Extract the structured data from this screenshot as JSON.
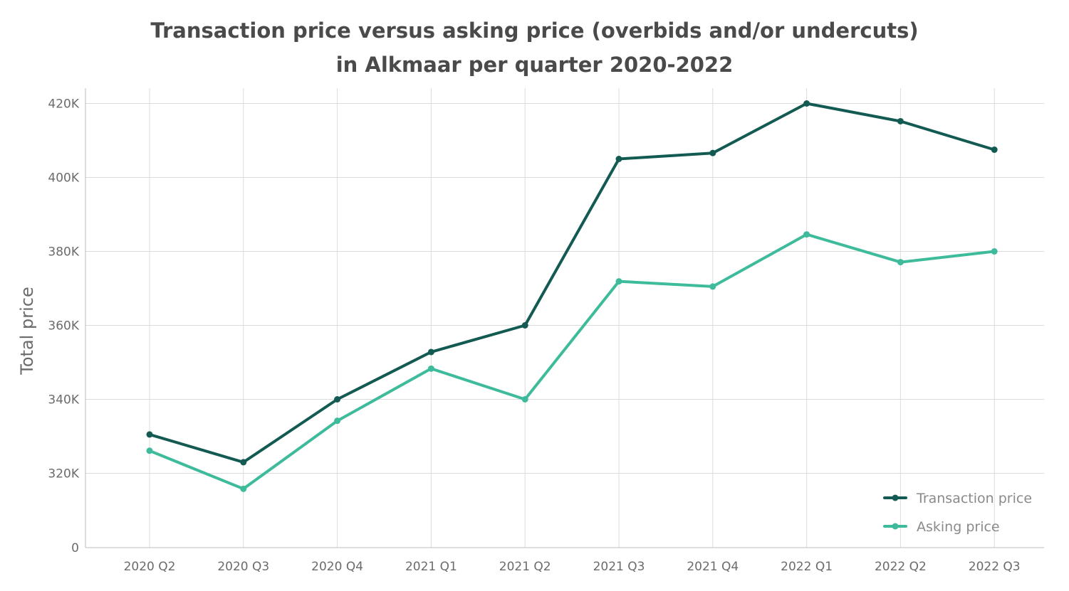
{
  "colors": {
    "transaction": "#125a52",
    "asking": "#3dbb9a",
    "grid": "#dcdcdc",
    "axis": "#bdbdbd",
    "text": "#6b6b6b"
  },
  "chart_data": {
    "type": "line",
    "title": [
      "Transaction price versus asking price (overbids and/or undercuts)",
      "in Alkmaar per quarter 2020-2022"
    ],
    "xlabel": "",
    "ylabel": "Total price",
    "categories": [
      "2020 Q2",
      "2020 Q3",
      "2020 Q4",
      "2021 Q1",
      "2021 Q2",
      "2021 Q3",
      "2021 Q4",
      "2022 Q1",
      "2022 Q2",
      "2022 Q3"
    ],
    "y_ticks": [
      0,
      320000,
      340000,
      360000,
      380000,
      400000,
      420000
    ],
    "y_tick_labels": [
      "0",
      "320K",
      "340K",
      "360K",
      "380K",
      "400K",
      "420K"
    ],
    "y_axis_break": "between 0 and 320K",
    "ylim": [
      300000,
      424000
    ],
    "grid": true,
    "legend_position": "bottom-right",
    "series": [
      {
        "name": "Transaction price",
        "color": "#125a52",
        "values": [
          330500,
          323000,
          340000,
          352800,
          360000,
          405000,
          406600,
          420000,
          415200,
          407500
        ]
      },
      {
        "name": "Asking price",
        "color": "#3dbb9a",
        "values": [
          326100,
          315800,
          334200,
          348300,
          340000,
          371900,
          370500,
          384600,
          377100,
          380000
        ]
      }
    ]
  }
}
